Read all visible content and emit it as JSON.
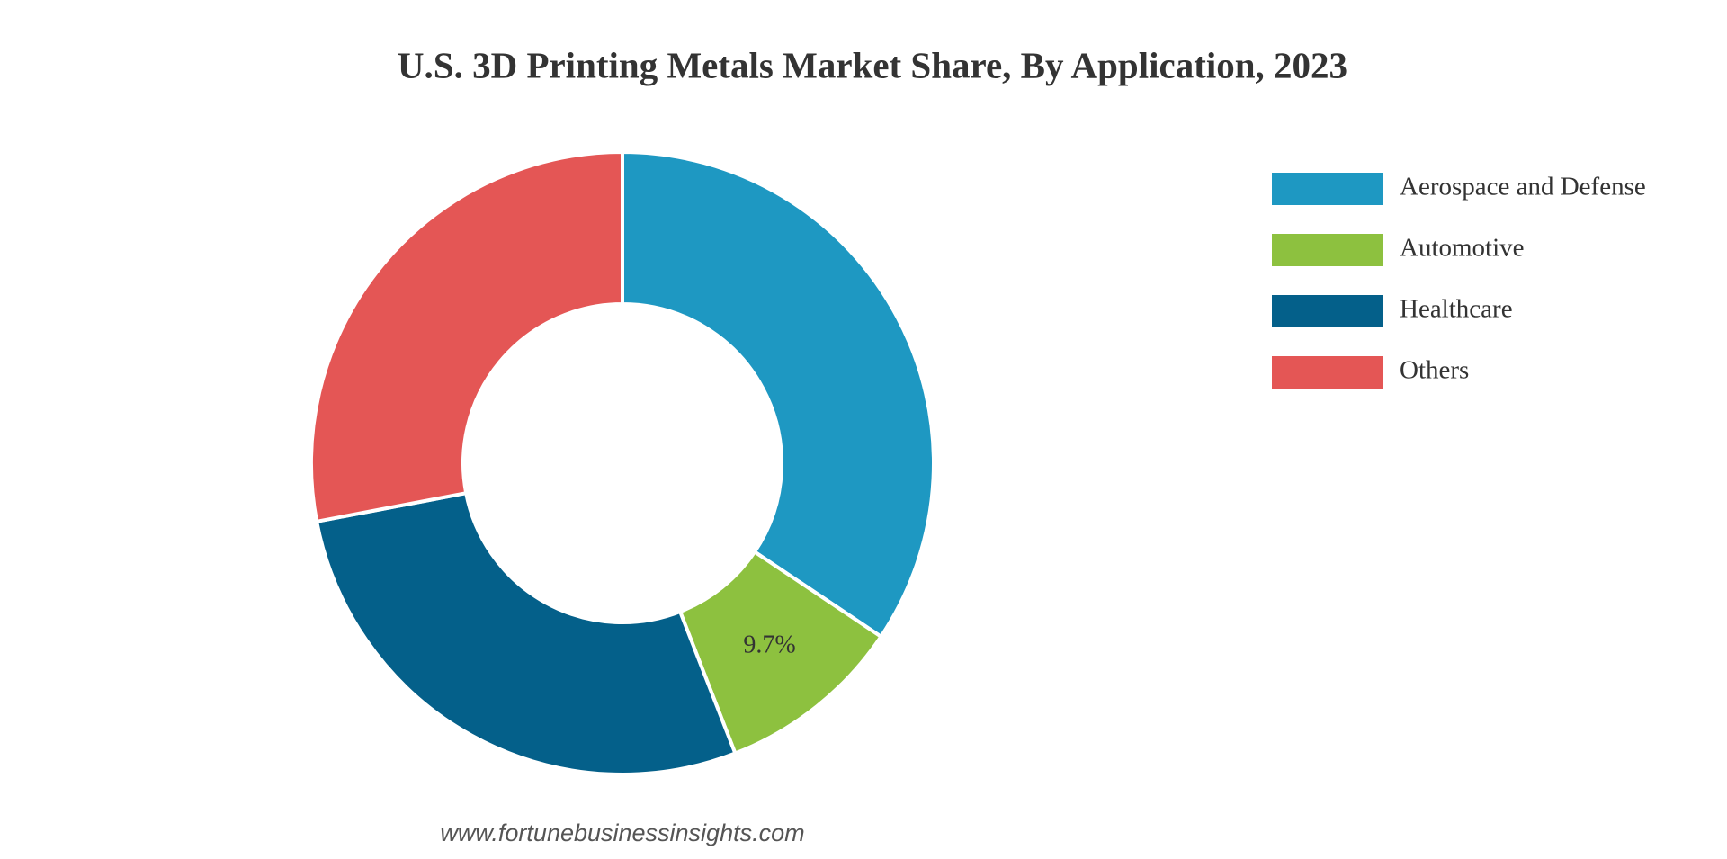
{
  "chart_data": {
    "type": "donut",
    "title": "U.S. 3D Printing Metals Market Share, By Application, 2023",
    "categories": [
      "Aerospace and Defense",
      "Automotive",
      "Healthcare",
      "Others"
    ],
    "values": [
      34.4,
      9.7,
      27.9,
      28.0
    ],
    "value_labels": [
      null,
      "9.7%",
      null,
      null
    ],
    "colors": [
      "#1e98c2",
      "#8dc13f",
      "#04608a",
      "#e45655"
    ],
    "legend": "right",
    "source": "www.fortunebusinessinsights.com"
  }
}
